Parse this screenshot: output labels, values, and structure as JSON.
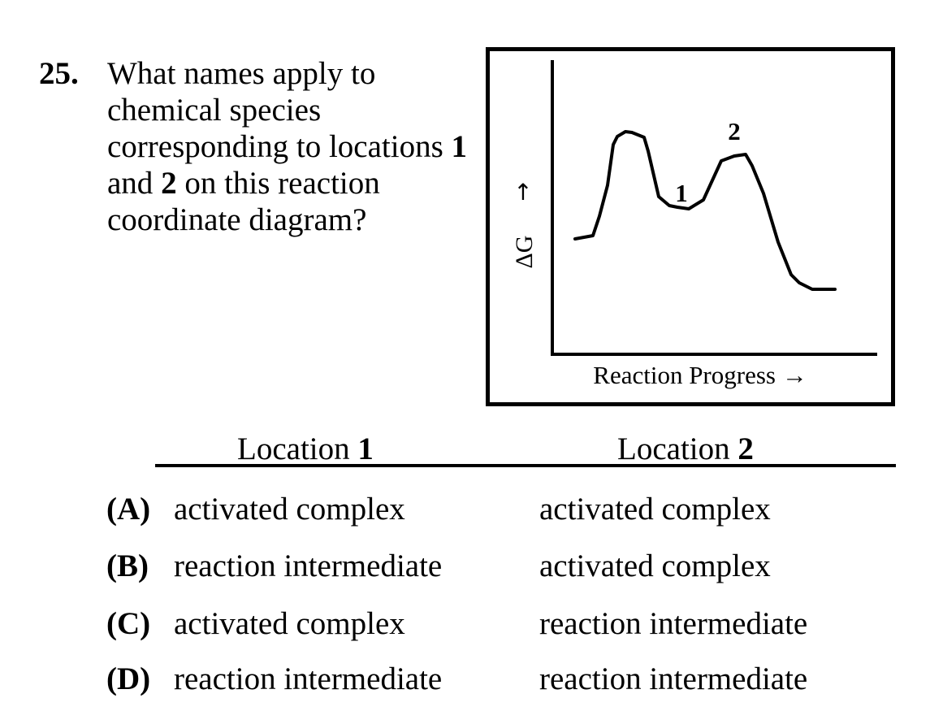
{
  "question": {
    "number": "25.",
    "text_part1": "What names apply to chemical species corresponding to locations ",
    "bold1": "1",
    "text_part2": " and ",
    "bold2": "2",
    "text_part3": " on this reaction coordinate diagram?"
  },
  "diagram": {
    "y_axis_label": "ΔG",
    "y_axis_arrow": "↑",
    "x_axis_label": "Reaction Progress →",
    "point_1_label": "1",
    "point_2_label": "2"
  },
  "table": {
    "col1_label": "Location ",
    "col1_num": "1",
    "col2_label": "Location ",
    "col2_num": "2",
    "choices": [
      {
        "letter": "(A)",
        "loc1": "activated complex",
        "loc2": "activated complex"
      },
      {
        "letter": "(B)",
        "loc1": "reaction intermediate",
        "loc2": "activated complex"
      },
      {
        "letter": "(C)",
        "loc1": "activated complex",
        "loc2": "reaction intermediate"
      },
      {
        "letter": "(D)",
        "loc1": "reaction intermediate",
        "loc2": "reaction intermediate"
      }
    ]
  }
}
